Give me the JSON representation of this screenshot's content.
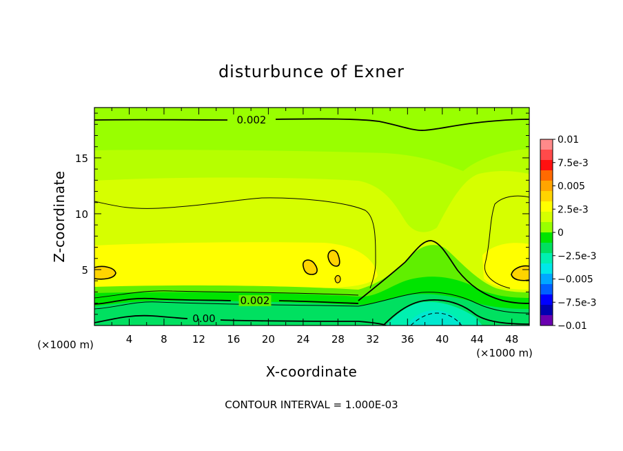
{
  "chart_data": {
    "type": "heatmap",
    "title": "disturbunce of Exner",
    "xlabel": "X-coordinate",
    "ylabel": "Z-coordinate",
    "x_unit": "(×1000 m)",
    "xlim": [
      0,
      50
    ],
    "ylim": [
      0,
      19.5
    ],
    "x_ticks": [
      "4",
      "8",
      "12",
      "16",
      "20",
      "24",
      "28",
      "32",
      "36",
      "40",
      "44",
      "48"
    ],
    "y_ticks": [
      "5",
      "10",
      "15"
    ],
    "contour_labels": [
      "0.002",
      "0.002",
      "0.00"
    ],
    "footer": "CONTOUR INTERVAL = 1.000E-03",
    "colorbar": {
      "labels": [
        "0.01",
        "7.5e-3",
        "0.005",
        "2.5e-3",
        "0",
        "−2.5e-3",
        "−0.005",
        "−7.5e-3",
        "−0.01"
      ],
      "colors": [
        "#ff8a8a",
        "#ff4a4a",
        "#ff1010",
        "#ff6a00",
        "#ffa500",
        "#ffd400",
        "#ffff00",
        "#d6ff00",
        "#99ff00",
        "#00e400",
        "#00e060",
        "#00f0b0",
        "#00e8e8",
        "#00a8ff",
        "#0060ff",
        "#0000ff",
        "#0000b0",
        "#6a00b0"
      ]
    },
    "region_colors": {
      "top": "#99ff00",
      "upper_band": "#b6ff00",
      "mid_band": "#d6ff00",
      "core": "#ffff00",
      "low_1": "#60ef00",
      "low_2": "#00e400",
      "low_3": "#00e060",
      "low_4": "#00f0b0",
      "bubble": "#ffd400"
    }
  }
}
